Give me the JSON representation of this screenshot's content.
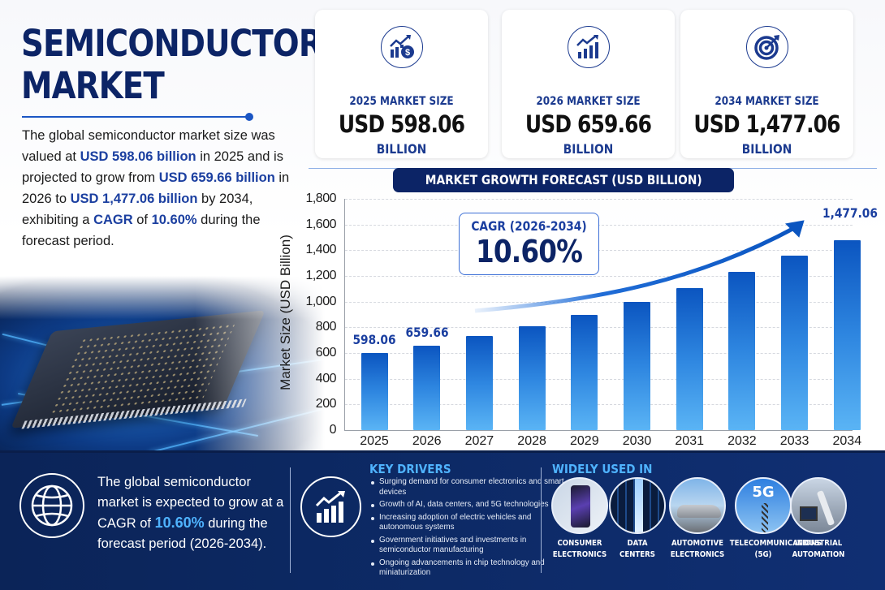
{
  "hero": {
    "title_line1": "SEMICONDUCTOR",
    "title_line2": "MARKET",
    "desc": [
      {
        "t": "The global semiconductor market size was valued at ",
        "hl": false
      },
      {
        "t": "USD 598.06 billion",
        "hl": true
      },
      {
        "t": " in 2025 and is projected to grow from ",
        "hl": false
      },
      {
        "t": "USD 659.66 billion",
        "hl": true
      },
      {
        "t": " in 2026 to ",
        "hl": false
      },
      {
        "t": "USD 1,477.06 billion",
        "hl": true
      },
      {
        "t": " by 2034, exhibiting a ",
        "hl": false
      },
      {
        "t": "CAGR",
        "hl": true
      },
      {
        "t": " of ",
        "hl": false
      },
      {
        "t": "10.60%",
        "hl": true
      },
      {
        "t": " during the forecast period.",
        "hl": false
      }
    ],
    "image": "semiconductor-chip-on-circuit-board"
  },
  "cards": [
    {
      "icon": "growth-money-icon",
      "label": "2025 MARKET SIZE",
      "value": "USD 598.06",
      "unit": "BILLION"
    },
    {
      "icon": "bar-chart-growth-icon",
      "label": "2026 MARKET SIZE",
      "value": "USD 659.66",
      "unit": "BILLION"
    },
    {
      "icon": "target-icon",
      "label": "2034 MARKET SIZE",
      "value": "USD 1,477.06",
      "unit": "BILLION"
    }
  ],
  "chart_banner": "MARKET GROWTH FORECAST (USD BILLION)",
  "cagr_box": {
    "label": "CAGR (2026-2034)",
    "value": "10.60%"
  },
  "chart_data": {
    "type": "bar",
    "title": "MARKET GROWTH FORECAST (USD BILLION)",
    "xlabel": "",
    "ylabel": "Market Size (USD Billion)",
    "ylim": [
      0,
      1800
    ],
    "yticks": [
      0,
      200,
      400,
      600,
      800,
      1000,
      1200,
      1400,
      1600,
      1800
    ],
    "ytick_labels": [
      "0",
      "200",
      "400",
      "600",
      "800",
      "1,000",
      "1,200",
      "1,400",
      "1,600",
      "1,800"
    ],
    "grid": true,
    "categories": [
      "2025",
      "2026",
      "2027",
      "2028",
      "2029",
      "2030",
      "2031",
      "2032",
      "2033",
      "2034"
    ],
    "values": [
      598.06,
      659.66,
      730,
      810,
      900,
      995,
      1105,
      1230,
      1360,
      1477.06
    ],
    "data_labels": [
      {
        "index": 0,
        "text": "598.06"
      },
      {
        "index": 1,
        "text": "659.66"
      },
      {
        "index": 9,
        "text": "1,477.06"
      }
    ],
    "annotations": [
      "CAGR (2026-2034) 10.60%",
      "upward trend arrow"
    ]
  },
  "bottom": {
    "summary": [
      {
        "t": "The global semiconductor market is expected to grow at a CAGR of ",
        "hl": false
      },
      {
        "t": "10.60%",
        "hl": true
      },
      {
        "t": " during the forecast period (2026-2034).",
        "hl": false
      }
    ],
    "drivers_title": "KEY DRIVERS",
    "drivers": [
      "Surging demand for consumer electronics and smart devices",
      "Growth of AI, data centers, and 5G technologies",
      "Increasing adoption of electric vehicles and autonomous systems",
      "Government initiatives and investments in semiconductor manufacturing",
      "Ongoing advancements in chip technology and miniaturization"
    ],
    "used_title": "WIDELY USED IN",
    "uses": [
      {
        "line1": "CONSUMER",
        "line2": "ELECTRONICS",
        "image": "smartphone"
      },
      {
        "line1": "DATA",
        "line2": "CENTERS",
        "image": "server-racks"
      },
      {
        "line1": "AUTOMOTIVE",
        "line2": "ELECTRONICS",
        "image": "car"
      },
      {
        "line1": "TELECOMMUNICATIONS",
        "line2": "(5G)",
        "image": "5g-tower",
        "badge": "5G"
      },
      {
        "line1": "INDUSTRIAL",
        "line2": "AUTOMATION",
        "image": "robot-arm"
      }
    ]
  },
  "colors": {
    "navy": "#0c2466",
    "accent_blue": "#1b3fa0",
    "bar_top": "#0b55c0",
    "bar_bottom": "#5ab4f5",
    "light_blue_text": "#4fb3ff",
    "bottom_bg": "#0d2a66"
  }
}
